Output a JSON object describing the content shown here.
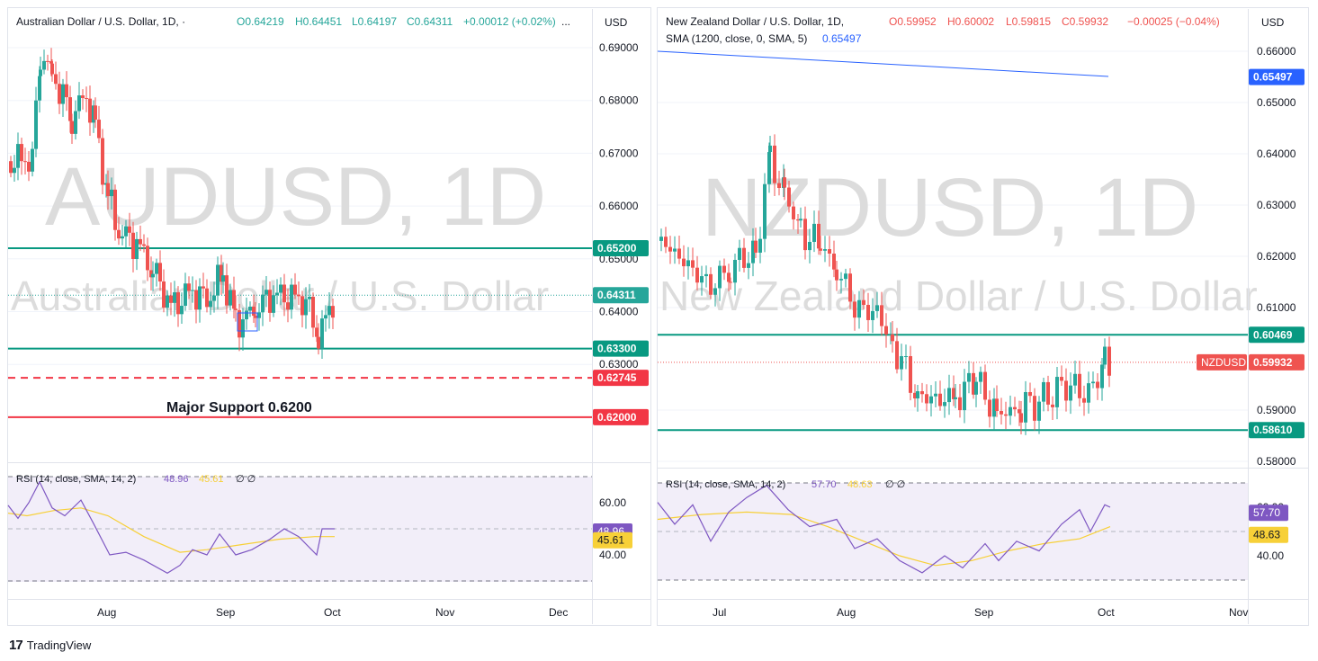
{
  "colors": {
    "up": "#26a69a",
    "down": "#ef5350",
    "level_green": "#089981",
    "support_red": "#f23645",
    "sma_blue": "#2962ff",
    "rsi_line": "#7e57c2",
    "rsi_ma": "#f7d038",
    "rsi_band": "#ede7f6",
    "grid": "#f0f3fa",
    "axis_text": "#131722",
    "watermark": "#dcdcdc"
  },
  "footer": {
    "brand": "TradingView",
    "logo_icon": "tv-logo-icon"
  },
  "left_panel": {
    "header": {
      "symbol": "Australian Dollar / U.S. Dollar, 1D, ·",
      "o": "O0.64219",
      "h": "H0.64451",
      "l": "L0.64197",
      "c": "C0.64311",
      "change": "+0.00012 (+0.02%)",
      "more": "..."
    },
    "currency": "USD",
    "watermark": "AUDUSD, 1D",
    "watermark_sub": "Australian Dollar / U.S. Dollar",
    "annotation": "Major Support 0.6200",
    "price_ticks": [
      "0.69000",
      "0.68000",
      "0.67000",
      "0.66000",
      "0.65000",
      "0.64000",
      "0.63000"
    ],
    "levels": [
      {
        "label": "0.65200",
        "value": 0.652,
        "type": "solid",
        "color": "#089981"
      },
      {
        "label": "0.63300",
        "value": 0.633,
        "type": "solid",
        "color": "#089981"
      },
      {
        "label": "0.62745",
        "value": 0.62745,
        "type": "dashed",
        "color": "#f23645"
      },
      {
        "label": "0.62000",
        "value": 0.62,
        "type": "solid",
        "color": "#f23645"
      }
    ],
    "current_price": {
      "label": "0.64311",
      "value": 0.64311
    },
    "rsi": {
      "legend": "RSI (14, close, SMA, 14, 2)",
      "rsi_value": "48.96",
      "ma_value": "45.61",
      "na": "∅ ∅",
      "ticks": [
        "60.00",
        "40.00"
      ]
    },
    "time_ticks": [
      "Aug",
      "Sep",
      "Oct",
      "Nov",
      "Dec"
    ]
  },
  "right_panel": {
    "header": {
      "symbol": "New Zealand Dollar / U.S. Dollar, 1D,",
      "o": "O0.59952",
      "h": "H0.60002",
      "l": "L0.59815",
      "c": "C0.59932",
      "change": "−0.00025 (−0.04%)",
      "sma": "SMA (1200, close, 0, SMA, 5)",
      "sma_value": "0.65497"
    },
    "currency": "USD",
    "watermark": "NZDUSD, 1D",
    "watermark_sub": "New Zealand Dollar / U.S. Dollar",
    "price_ticks": [
      "0.66000",
      "0.65000",
      "0.64000",
      "0.63000",
      "0.62000",
      "0.61000",
      "0.59000",
      "0.58000"
    ],
    "levels": [
      {
        "label": "0.60469",
        "value": 0.60469,
        "type": "solid",
        "color": "#089981"
      },
      {
        "label": "0.58610",
        "value": 0.5861,
        "type": "solid",
        "color": "#089981"
      }
    ],
    "sma_label": "0.65497",
    "current_price": {
      "symbol": "NZDUSD",
      "label": "0.59932",
      "value": 0.59932
    },
    "rsi": {
      "legend": "RSI (14, close, SMA, 14, 2)",
      "rsi_value": "57.70",
      "ma_value": "48.63",
      "na": "∅ ∅",
      "ticks": [
        "60.00",
        "40.00"
      ]
    },
    "time_ticks": [
      "Jul",
      "Aug",
      "Sep",
      "Oct",
      "Nov"
    ]
  }
}
